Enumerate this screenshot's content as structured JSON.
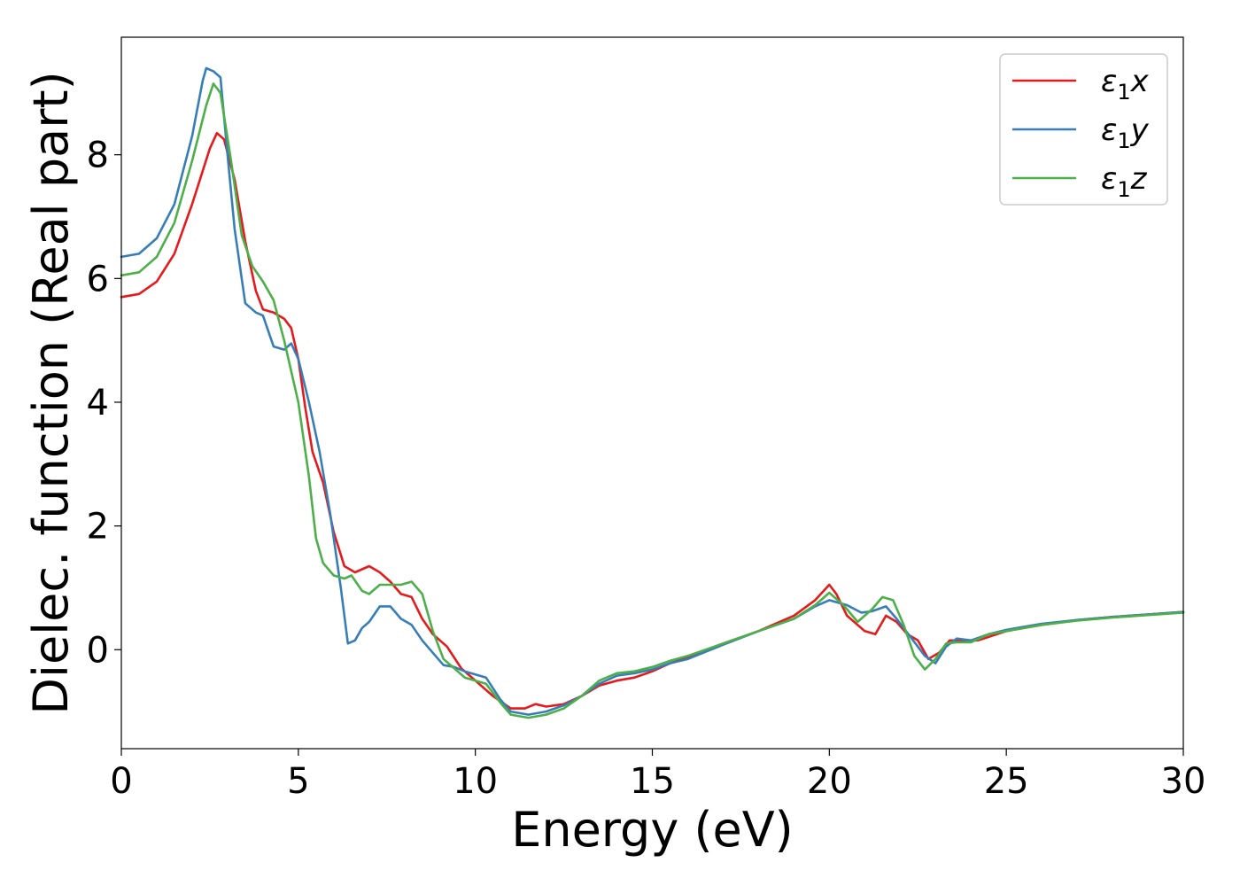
{
  "chart_data": {
    "type": "line",
    "xlabel": "Energy (eV)",
    "ylabel": "Dielec. function (Real part)",
    "xlim": [
      0,
      30
    ],
    "ylim": [
      -1.6,
      9.9
    ],
    "xticks": [
      0,
      5,
      10,
      15,
      20,
      25,
      30
    ],
    "yticks": [
      0,
      2,
      4,
      6,
      8
    ],
    "grid": false,
    "legend_position": "top-right",
    "series": [
      {
        "name": "ε1x",
        "legend_main": "ε",
        "legend_sub": "1",
        "legend_var": "x",
        "color": "#e41a1c",
        "points": [
          [
            0,
            5.7
          ],
          [
            0.5,
            5.75
          ],
          [
            1,
            5.95
          ],
          [
            1.5,
            6.4
          ],
          [
            2,
            7.2
          ],
          [
            2.5,
            8.1
          ],
          [
            2.7,
            8.35
          ],
          [
            2.9,
            8.25
          ],
          [
            3.2,
            7.6
          ],
          [
            3.5,
            6.6
          ],
          [
            3.8,
            5.8
          ],
          [
            4.0,
            5.5
          ],
          [
            4.3,
            5.45
          ],
          [
            4.6,
            5.35
          ],
          [
            4.8,
            5.2
          ],
          [
            5.0,
            4.7
          ],
          [
            5.2,
            3.9
          ],
          [
            5.4,
            3.2
          ],
          [
            5.7,
            2.7
          ],
          [
            6.0,
            1.9
          ],
          [
            6.3,
            1.35
          ],
          [
            6.6,
            1.25
          ],
          [
            7.0,
            1.35
          ],
          [
            7.3,
            1.25
          ],
          [
            7.6,
            1.1
          ],
          [
            7.9,
            0.9
          ],
          [
            8.2,
            0.85
          ],
          [
            8.5,
            0.5
          ],
          [
            8.8,
            0.25
          ],
          [
            9.2,
            0.05
          ],
          [
            9.6,
            -0.3
          ],
          [
            10.0,
            -0.5
          ],
          [
            10.5,
            -0.75
          ],
          [
            11.0,
            -0.95
          ],
          [
            11.4,
            -0.95
          ],
          [
            11.7,
            -0.88
          ],
          [
            12.0,
            -0.92
          ],
          [
            12.5,
            -0.88
          ],
          [
            13.0,
            -0.75
          ],
          [
            13.5,
            -0.58
          ],
          [
            14.0,
            -0.5
          ],
          [
            14.5,
            -0.45
          ],
          [
            15.0,
            -0.35
          ],
          [
            15.5,
            -0.22
          ],
          [
            16.0,
            -0.12
          ],
          [
            17.0,
            0.1
          ],
          [
            18.0,
            0.3
          ],
          [
            19.0,
            0.55
          ],
          [
            19.6,
            0.8
          ],
          [
            20.0,
            1.05
          ],
          [
            20.2,
            0.9
          ],
          [
            20.5,
            0.55
          ],
          [
            21.0,
            0.3
          ],
          [
            21.3,
            0.25
          ],
          [
            21.6,
            0.55
          ],
          [
            21.9,
            0.45
          ],
          [
            22.2,
            0.25
          ],
          [
            22.5,
            0.15
          ],
          [
            22.8,
            -0.15
          ],
          [
            23.1,
            -0.05
          ],
          [
            23.4,
            0.15
          ],
          [
            23.8,
            0.15
          ],
          [
            24.2,
            0.15
          ],
          [
            25.0,
            0.3
          ],
          [
            26.0,
            0.4
          ],
          [
            27.0,
            0.48
          ],
          [
            28.0,
            0.53
          ],
          [
            29.0,
            0.57
          ],
          [
            30.0,
            0.61
          ]
        ]
      },
      {
        "name": "ε1y",
        "legend_main": "ε",
        "legend_sub": "1",
        "legend_var": "y",
        "color": "#377eb8",
        "points": [
          [
            0,
            6.35
          ],
          [
            0.5,
            6.4
          ],
          [
            1,
            6.65
          ],
          [
            1.5,
            7.2
          ],
          [
            2.0,
            8.3
          ],
          [
            2.3,
            9.2
          ],
          [
            2.4,
            9.4
          ],
          [
            2.6,
            9.35
          ],
          [
            2.8,
            9.25
          ],
          [
            3.0,
            8.0
          ],
          [
            3.2,
            6.8
          ],
          [
            3.5,
            5.6
          ],
          [
            3.8,
            5.45
          ],
          [
            4.0,
            5.4
          ],
          [
            4.3,
            4.9
          ],
          [
            4.6,
            4.85
          ],
          [
            4.8,
            4.95
          ],
          [
            5.0,
            4.7
          ],
          [
            5.3,
            4.0
          ],
          [
            5.6,
            3.2
          ],
          [
            5.9,
            2.2
          ],
          [
            6.2,
            1.0
          ],
          [
            6.4,
            0.1
          ],
          [
            6.6,
            0.15
          ],
          [
            6.8,
            0.35
          ],
          [
            7.0,
            0.45
          ],
          [
            7.3,
            0.7
          ],
          [
            7.6,
            0.7
          ],
          [
            7.9,
            0.5
          ],
          [
            8.2,
            0.4
          ],
          [
            8.5,
            0.15
          ],
          [
            8.8,
            -0.05
          ],
          [
            9.1,
            -0.25
          ],
          [
            9.4,
            -0.28
          ],
          [
            9.7,
            -0.35
          ],
          [
            10.0,
            -0.4
          ],
          [
            10.3,
            -0.45
          ],
          [
            10.7,
            -0.8
          ],
          [
            11.0,
            -1.0
          ],
          [
            11.5,
            -1.05
          ],
          [
            12.0,
            -1.0
          ],
          [
            12.5,
            -0.9
          ],
          [
            13.0,
            -0.75
          ],
          [
            13.5,
            -0.55
          ],
          [
            14.0,
            -0.42
          ],
          [
            14.5,
            -0.38
          ],
          [
            15.0,
            -0.32
          ],
          [
            15.5,
            -0.22
          ],
          [
            16.0,
            -0.15
          ],
          [
            17.0,
            0.08
          ],
          [
            18.0,
            0.3
          ],
          [
            19.0,
            0.5
          ],
          [
            19.6,
            0.7
          ],
          [
            20.0,
            0.8
          ],
          [
            20.5,
            0.72
          ],
          [
            20.9,
            0.6
          ],
          [
            21.2,
            0.62
          ],
          [
            21.6,
            0.7
          ],
          [
            21.9,
            0.5
          ],
          [
            22.3,
            0.2
          ],
          [
            22.7,
            -0.1
          ],
          [
            23.0,
            -0.22
          ],
          [
            23.3,
            0.05
          ],
          [
            23.6,
            0.18
          ],
          [
            24.0,
            0.15
          ],
          [
            24.5,
            0.25
          ],
          [
            25.0,
            0.32
          ],
          [
            26.0,
            0.42
          ],
          [
            27.0,
            0.48
          ],
          [
            28.0,
            0.53
          ],
          [
            29.0,
            0.57
          ],
          [
            30.0,
            0.61
          ]
        ]
      },
      {
        "name": "ε1z",
        "legend_main": "ε",
        "legend_sub": "1",
        "legend_var": "z",
        "color": "#4daf4a",
        "points": [
          [
            0,
            6.05
          ],
          [
            0.5,
            6.1
          ],
          [
            1,
            6.35
          ],
          [
            1.5,
            6.9
          ],
          [
            2.0,
            7.9
          ],
          [
            2.4,
            8.8
          ],
          [
            2.6,
            9.15
          ],
          [
            2.8,
            9.0
          ],
          [
            3.1,
            7.9
          ],
          [
            3.4,
            6.7
          ],
          [
            3.7,
            6.2
          ],
          [
            4.0,
            5.95
          ],
          [
            4.3,
            5.65
          ],
          [
            4.6,
            5.0
          ],
          [
            5.0,
            4.0
          ],
          [
            5.3,
            2.8
          ],
          [
            5.5,
            1.8
          ],
          [
            5.7,
            1.4
          ],
          [
            6.0,
            1.2
          ],
          [
            6.3,
            1.15
          ],
          [
            6.5,
            1.2
          ],
          [
            6.8,
            0.95
          ],
          [
            7.0,
            0.9
          ],
          [
            7.3,
            1.05
          ],
          [
            7.6,
            1.05
          ],
          [
            7.9,
            1.05
          ],
          [
            8.2,
            1.1
          ],
          [
            8.5,
            0.9
          ],
          [
            8.8,
            0.3
          ],
          [
            9.1,
            -0.15
          ],
          [
            9.4,
            -0.3
          ],
          [
            9.7,
            -0.45
          ],
          [
            10.0,
            -0.5
          ],
          [
            10.3,
            -0.55
          ],
          [
            10.7,
            -0.85
          ],
          [
            11.0,
            -1.05
          ],
          [
            11.5,
            -1.1
          ],
          [
            12.0,
            -1.05
          ],
          [
            12.5,
            -0.95
          ],
          [
            13.0,
            -0.75
          ],
          [
            13.5,
            -0.5
          ],
          [
            14.0,
            -0.38
          ],
          [
            14.5,
            -0.35
          ],
          [
            15.0,
            -0.28
          ],
          [
            15.5,
            -0.18
          ],
          [
            16.0,
            -0.1
          ],
          [
            17.0,
            0.1
          ],
          [
            18.0,
            0.3
          ],
          [
            19.0,
            0.5
          ],
          [
            19.6,
            0.72
          ],
          [
            20.0,
            0.92
          ],
          [
            20.4,
            0.72
          ],
          [
            20.8,
            0.45
          ],
          [
            21.2,
            0.65
          ],
          [
            21.5,
            0.85
          ],
          [
            21.8,
            0.8
          ],
          [
            22.1,
            0.4
          ],
          [
            22.4,
            -0.1
          ],
          [
            22.7,
            -0.32
          ],
          [
            23.0,
            -0.15
          ],
          [
            23.3,
            0.1
          ],
          [
            23.6,
            0.12
          ],
          [
            24.0,
            0.12
          ],
          [
            24.5,
            0.25
          ],
          [
            25.0,
            0.3
          ],
          [
            26.0,
            0.4
          ],
          [
            27.0,
            0.47
          ],
          [
            28.0,
            0.52
          ],
          [
            29.0,
            0.56
          ],
          [
            30.0,
            0.6
          ]
        ]
      }
    ]
  }
}
